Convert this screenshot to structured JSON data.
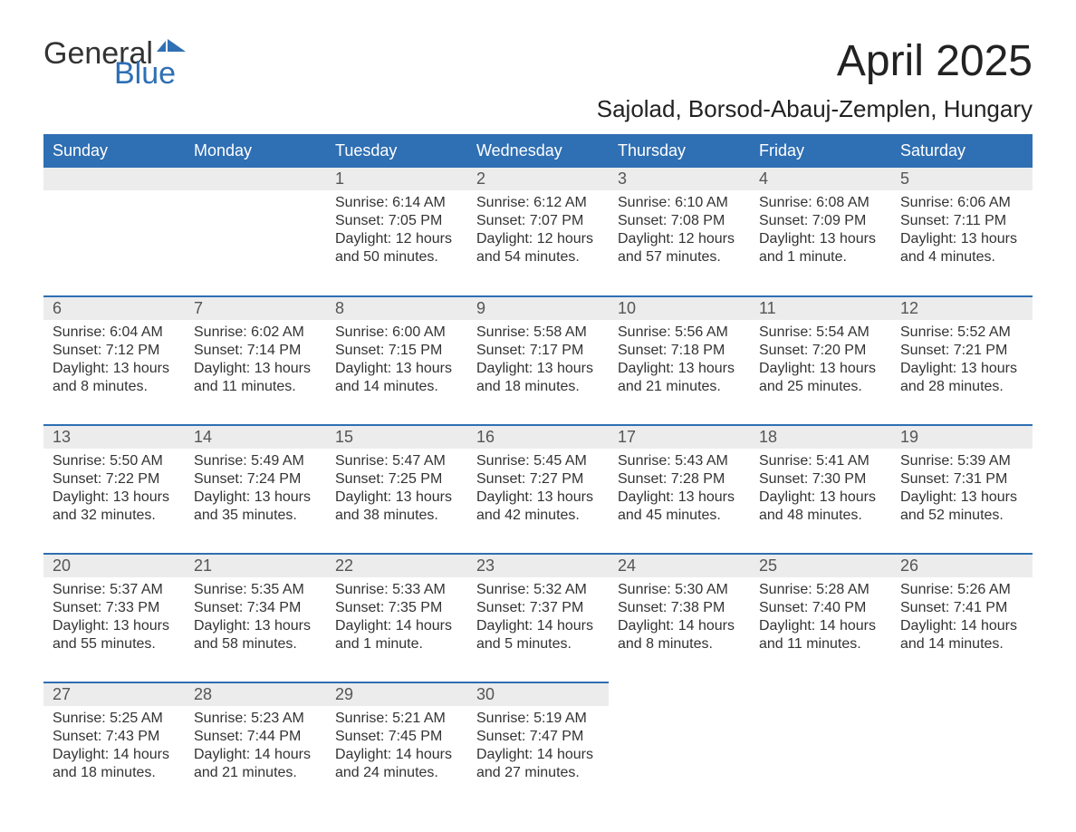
{
  "logo": {
    "text1": "General",
    "text2": "Blue",
    "accent_color": "#2f6fb3"
  },
  "title": "April 2025",
  "location": "Sajolad, Borsod-Abauj-Zemplen, Hungary",
  "header_bg": "#2f6fb3",
  "header_fg": "#ffffff",
  "daynum_bg": "#ececec",
  "day_border": "#2f6fb3",
  "text_color": "#333333",
  "font_family": "Arial",
  "title_fontsize": 48,
  "location_fontsize": 26,
  "header_fontsize": 18,
  "body_fontsize": 16,
  "weekdays": [
    "Sunday",
    "Monday",
    "Tuesday",
    "Wednesday",
    "Thursday",
    "Friday",
    "Saturday"
  ],
  "weeks": [
    [
      null,
      null,
      {
        "n": "1",
        "sr": "Sunrise: 6:14 AM",
        "ss": "Sunset: 7:05 PM",
        "dl1": "Daylight: 12 hours",
        "dl2": "and 50 minutes."
      },
      {
        "n": "2",
        "sr": "Sunrise: 6:12 AM",
        "ss": "Sunset: 7:07 PM",
        "dl1": "Daylight: 12 hours",
        "dl2": "and 54 minutes."
      },
      {
        "n": "3",
        "sr": "Sunrise: 6:10 AM",
        "ss": "Sunset: 7:08 PM",
        "dl1": "Daylight: 12 hours",
        "dl2": "and 57 minutes."
      },
      {
        "n": "4",
        "sr": "Sunrise: 6:08 AM",
        "ss": "Sunset: 7:09 PM",
        "dl1": "Daylight: 13 hours",
        "dl2": "and 1 minute."
      },
      {
        "n": "5",
        "sr": "Sunrise: 6:06 AM",
        "ss": "Sunset: 7:11 PM",
        "dl1": "Daylight: 13 hours",
        "dl2": "and 4 minutes."
      }
    ],
    [
      {
        "n": "6",
        "sr": "Sunrise: 6:04 AM",
        "ss": "Sunset: 7:12 PM",
        "dl1": "Daylight: 13 hours",
        "dl2": "and 8 minutes."
      },
      {
        "n": "7",
        "sr": "Sunrise: 6:02 AM",
        "ss": "Sunset: 7:14 PM",
        "dl1": "Daylight: 13 hours",
        "dl2": "and 11 minutes."
      },
      {
        "n": "8",
        "sr": "Sunrise: 6:00 AM",
        "ss": "Sunset: 7:15 PM",
        "dl1": "Daylight: 13 hours",
        "dl2": "and 14 minutes."
      },
      {
        "n": "9",
        "sr": "Sunrise: 5:58 AM",
        "ss": "Sunset: 7:17 PM",
        "dl1": "Daylight: 13 hours",
        "dl2": "and 18 minutes."
      },
      {
        "n": "10",
        "sr": "Sunrise: 5:56 AM",
        "ss": "Sunset: 7:18 PM",
        "dl1": "Daylight: 13 hours",
        "dl2": "and 21 minutes."
      },
      {
        "n": "11",
        "sr": "Sunrise: 5:54 AM",
        "ss": "Sunset: 7:20 PM",
        "dl1": "Daylight: 13 hours",
        "dl2": "and 25 minutes."
      },
      {
        "n": "12",
        "sr": "Sunrise: 5:52 AM",
        "ss": "Sunset: 7:21 PM",
        "dl1": "Daylight: 13 hours",
        "dl2": "and 28 minutes."
      }
    ],
    [
      {
        "n": "13",
        "sr": "Sunrise: 5:50 AM",
        "ss": "Sunset: 7:22 PM",
        "dl1": "Daylight: 13 hours",
        "dl2": "and 32 minutes."
      },
      {
        "n": "14",
        "sr": "Sunrise: 5:49 AM",
        "ss": "Sunset: 7:24 PM",
        "dl1": "Daylight: 13 hours",
        "dl2": "and 35 minutes."
      },
      {
        "n": "15",
        "sr": "Sunrise: 5:47 AM",
        "ss": "Sunset: 7:25 PM",
        "dl1": "Daylight: 13 hours",
        "dl2": "and 38 minutes."
      },
      {
        "n": "16",
        "sr": "Sunrise: 5:45 AM",
        "ss": "Sunset: 7:27 PM",
        "dl1": "Daylight: 13 hours",
        "dl2": "and 42 minutes."
      },
      {
        "n": "17",
        "sr": "Sunrise: 5:43 AM",
        "ss": "Sunset: 7:28 PM",
        "dl1": "Daylight: 13 hours",
        "dl2": "and 45 minutes."
      },
      {
        "n": "18",
        "sr": "Sunrise: 5:41 AM",
        "ss": "Sunset: 7:30 PM",
        "dl1": "Daylight: 13 hours",
        "dl2": "and 48 minutes."
      },
      {
        "n": "19",
        "sr": "Sunrise: 5:39 AM",
        "ss": "Sunset: 7:31 PM",
        "dl1": "Daylight: 13 hours",
        "dl2": "and 52 minutes."
      }
    ],
    [
      {
        "n": "20",
        "sr": "Sunrise: 5:37 AM",
        "ss": "Sunset: 7:33 PM",
        "dl1": "Daylight: 13 hours",
        "dl2": "and 55 minutes."
      },
      {
        "n": "21",
        "sr": "Sunrise: 5:35 AM",
        "ss": "Sunset: 7:34 PM",
        "dl1": "Daylight: 13 hours",
        "dl2": "and 58 minutes."
      },
      {
        "n": "22",
        "sr": "Sunrise: 5:33 AM",
        "ss": "Sunset: 7:35 PM",
        "dl1": "Daylight: 14 hours",
        "dl2": "and 1 minute."
      },
      {
        "n": "23",
        "sr": "Sunrise: 5:32 AM",
        "ss": "Sunset: 7:37 PM",
        "dl1": "Daylight: 14 hours",
        "dl2": "and 5 minutes."
      },
      {
        "n": "24",
        "sr": "Sunrise: 5:30 AM",
        "ss": "Sunset: 7:38 PM",
        "dl1": "Daylight: 14 hours",
        "dl2": "and 8 minutes."
      },
      {
        "n": "25",
        "sr": "Sunrise: 5:28 AM",
        "ss": "Sunset: 7:40 PM",
        "dl1": "Daylight: 14 hours",
        "dl2": "and 11 minutes."
      },
      {
        "n": "26",
        "sr": "Sunrise: 5:26 AM",
        "ss": "Sunset: 7:41 PM",
        "dl1": "Daylight: 14 hours",
        "dl2": "and 14 minutes."
      }
    ],
    [
      {
        "n": "27",
        "sr": "Sunrise: 5:25 AM",
        "ss": "Sunset: 7:43 PM",
        "dl1": "Daylight: 14 hours",
        "dl2": "and 18 minutes."
      },
      {
        "n": "28",
        "sr": "Sunrise: 5:23 AM",
        "ss": "Sunset: 7:44 PM",
        "dl1": "Daylight: 14 hours",
        "dl2": "and 21 minutes."
      },
      {
        "n": "29",
        "sr": "Sunrise: 5:21 AM",
        "ss": "Sunset: 7:45 PM",
        "dl1": "Daylight: 14 hours",
        "dl2": "and 24 minutes."
      },
      {
        "n": "30",
        "sr": "Sunrise: 5:19 AM",
        "ss": "Sunset: 7:47 PM",
        "dl1": "Daylight: 14 hours",
        "dl2": "and 27 minutes."
      },
      null,
      null,
      null
    ]
  ]
}
